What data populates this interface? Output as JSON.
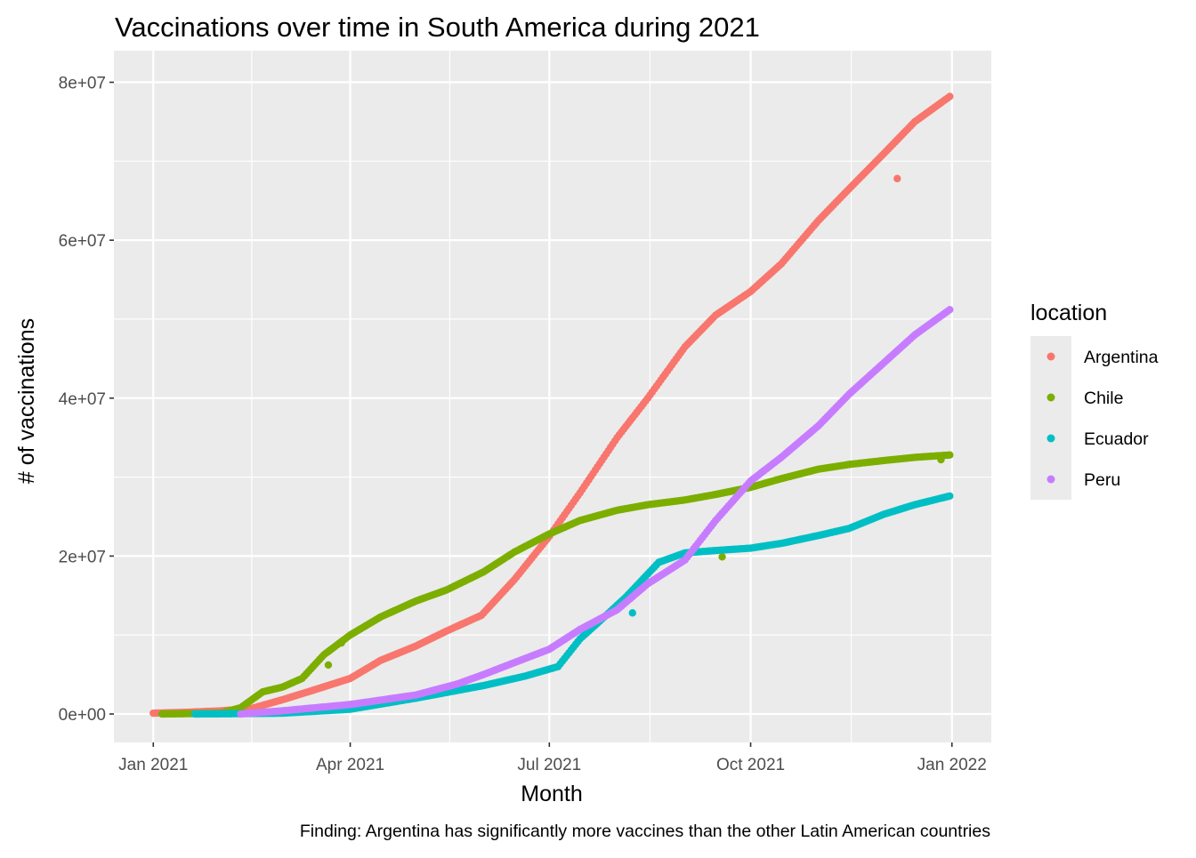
{
  "chart_data": {
    "type": "scatter",
    "title": "Vaccinations over time in South America during 2021",
    "xlabel": "Month",
    "ylabel": "# of vaccinations",
    "caption": "Finding: Argentina has significantly more vaccines than the other Latin American countries",
    "x_ticks": [
      {
        "date": "2021-01-01",
        "label": "Jan 2021"
      },
      {
        "date": "2021-04-01",
        "label": "Apr 2021"
      },
      {
        "date": "2021-07-01",
        "label": "Jul 2021"
      },
      {
        "date": "2021-10-01",
        "label": "Oct 2021"
      },
      {
        "date": "2022-01-01",
        "label": "Jan 2022"
      }
    ],
    "y_ticks": [
      {
        "value": 0,
        "label": "0e+00"
      },
      {
        "value": 20000000,
        "label": "2e+07"
      },
      {
        "value": 40000000,
        "label": "4e+07"
      },
      {
        "value": 60000000,
        "label": "6e+07"
      },
      {
        "value": 80000000,
        "label": "8e+07"
      }
    ],
    "xlim": [
      "2020-12-14",
      "2022-01-19"
    ],
    "ylim": [
      -3600000,
      84000000
    ],
    "grid": true,
    "legend": {
      "title": "location",
      "placement": "right"
    },
    "series": [
      {
        "name": "Argentina",
        "color": "#F8766D",
        "start": "2021-01-01",
        "end": "2021-12-31",
        "points": [
          [
            "2021-01-01",
            100000
          ],
          [
            "2021-01-15",
            200000
          ],
          [
            "2021-02-01",
            400000
          ],
          [
            "2021-02-15",
            700000
          ],
          [
            "2021-03-01",
            1800000
          ],
          [
            "2021-03-15",
            3000000
          ],
          [
            "2021-04-01",
            4500000
          ],
          [
            "2021-04-15",
            6800000
          ],
          [
            "2021-05-01",
            8600000
          ],
          [
            "2021-05-15",
            10500000
          ],
          [
            "2021-05-31",
            12500000
          ],
          [
            "2021-06-15",
            17000000
          ],
          [
            "2021-07-01",
            22500000
          ],
          [
            "2021-07-15",
            28000000
          ],
          [
            "2021-08-01",
            35000000
          ],
          [
            "2021-08-15",
            40000000
          ],
          [
            "2021-09-01",
            46500000
          ],
          [
            "2021-09-15",
            50500000
          ],
          [
            "2021-10-01",
            53500000
          ],
          [
            "2021-10-15",
            57000000
          ],
          [
            "2021-11-01",
            62500000
          ],
          [
            "2021-11-15",
            66500000
          ],
          [
            "2021-12-01",
            71000000
          ],
          [
            "2021-12-15",
            75000000
          ],
          [
            "2021-12-31",
            78200000
          ]
        ],
        "outliers": [
          [
            "2021-12-07",
            67800000
          ]
        ]
      },
      {
        "name": "Chile",
        "color": "#7CAE00",
        "start": "2021-01-05",
        "end": "2021-12-31",
        "points": [
          [
            "2021-01-05",
            0
          ],
          [
            "2021-01-20",
            50000
          ],
          [
            "2021-02-01",
            100000
          ],
          [
            "2021-02-10",
            800000
          ],
          [
            "2021-02-20",
            2800000
          ],
          [
            "2021-03-01",
            3400000
          ],
          [
            "2021-03-10",
            4500000
          ],
          [
            "2021-03-20",
            7500000
          ],
          [
            "2021-04-01",
            10000000
          ],
          [
            "2021-04-15",
            12300000
          ],
          [
            "2021-05-01",
            14300000
          ],
          [
            "2021-05-15",
            15700000
          ],
          [
            "2021-06-01",
            18000000
          ],
          [
            "2021-06-15",
            20500000
          ],
          [
            "2021-07-01",
            22800000
          ],
          [
            "2021-07-15",
            24500000
          ],
          [
            "2021-08-01",
            25800000
          ],
          [
            "2021-08-15",
            26500000
          ],
          [
            "2021-09-01",
            27100000
          ],
          [
            "2021-09-15",
            27800000
          ],
          [
            "2021-10-01",
            28700000
          ],
          [
            "2021-10-15",
            29800000
          ],
          [
            "2021-11-01",
            31000000
          ],
          [
            "2021-11-15",
            31600000
          ],
          [
            "2021-12-01",
            32100000
          ],
          [
            "2021-12-15",
            32500000
          ],
          [
            "2021-12-31",
            32800000
          ]
        ],
        "outliers": [
          [
            "2021-03-28",
            9000000
          ],
          [
            "2021-03-22",
            6200000
          ],
          [
            "2021-09-18",
            19900000
          ],
          [
            "2021-12-27",
            32200000
          ]
        ]
      },
      {
        "name": "Ecuador",
        "color": "#00BFC4",
        "start": "2021-01-20",
        "end": "2021-12-31",
        "points": [
          [
            "2021-01-20",
            0
          ],
          [
            "2021-02-01",
            20000
          ],
          [
            "2021-03-01",
            100000
          ],
          [
            "2021-04-01",
            600000
          ],
          [
            "2021-05-01",
            2000000
          ],
          [
            "2021-06-01",
            3600000
          ],
          [
            "2021-06-20",
            4800000
          ],
          [
            "2021-07-05",
            6000000
          ],
          [
            "2021-07-15",
            9500000
          ],
          [
            "2021-07-25",
            12000000
          ],
          [
            "2021-08-05",
            14800000
          ],
          [
            "2021-08-20",
            19200000
          ],
          [
            "2021-09-01",
            20400000
          ],
          [
            "2021-09-15",
            20700000
          ],
          [
            "2021-10-01",
            21000000
          ],
          [
            "2021-10-15",
            21600000
          ],
          [
            "2021-11-01",
            22600000
          ],
          [
            "2021-11-15",
            23500000
          ],
          [
            "2021-12-01",
            25300000
          ],
          [
            "2021-12-15",
            26500000
          ],
          [
            "2021-12-31",
            27600000
          ]
        ],
        "outliers": [
          [
            "2021-08-08",
            12800000
          ]
        ]
      },
      {
        "name": "Peru",
        "color": "#C77CFF",
        "start": "2021-02-10",
        "end": "2021-12-31",
        "points": [
          [
            "2021-02-10",
            0
          ],
          [
            "2021-03-01",
            400000
          ],
          [
            "2021-04-01",
            1200000
          ],
          [
            "2021-05-01",
            2400000
          ],
          [
            "2021-05-20",
            3800000
          ],
          [
            "2021-06-01",
            5000000
          ],
          [
            "2021-06-15",
            6500000
          ],
          [
            "2021-07-01",
            8200000
          ],
          [
            "2021-07-15",
            10700000
          ],
          [
            "2021-08-01",
            13200000
          ],
          [
            "2021-08-15",
            16500000
          ],
          [
            "2021-09-01",
            19500000
          ],
          [
            "2021-09-15",
            24500000
          ],
          [
            "2021-10-01",
            29500000
          ],
          [
            "2021-10-15",
            32500000
          ],
          [
            "2021-11-01",
            36500000
          ],
          [
            "2021-11-15",
            40500000
          ],
          [
            "2021-12-01",
            44500000
          ],
          [
            "2021-12-15",
            48000000
          ],
          [
            "2021-12-31",
            51200000
          ]
        ],
        "outliers": []
      }
    ]
  }
}
